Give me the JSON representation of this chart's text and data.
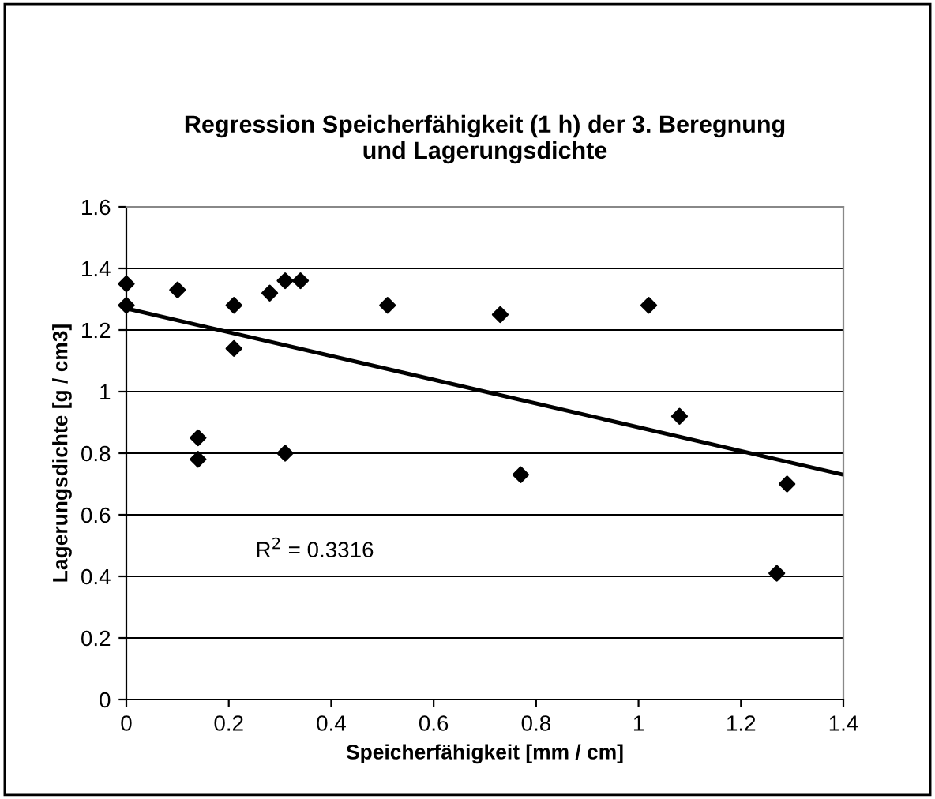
{
  "chart_data": {
    "type": "scatter",
    "title": "Regression Speicherfähigkeit (1 h) der 3. Beregnung\nund Lagerungsdichte",
    "xlabel": "Speicherfähigkeit [mm / cm]",
    "ylabel": "Lagerungsdichte [g / cm3]",
    "xlim": [
      0,
      1.4
    ],
    "xticks": [
      0,
      0.2,
      0.4,
      0.6,
      0.8,
      1,
      1.2,
      1.4
    ],
    "ylim": [
      0,
      1.6
    ],
    "yticks": [
      0,
      0.2,
      0.4,
      0.6,
      0.8,
      1,
      1.2,
      1.4,
      1.6
    ],
    "grid": "y",
    "legend": false,
    "series": [
      {
        "color": "#000000",
        "marker": "diamond",
        "x": [
          0,
          0,
          0.1,
          0.21,
          0.21,
          0.28,
          0.31,
          0.34,
          0.51,
          0.14,
          0.14,
          0.31,
          0.73,
          0.77,
          1.02,
          1.08,
          1.29,
          1.27
        ],
        "values": [
          1.35,
          1.28,
          1.33,
          1.28,
          1.14,
          1.32,
          1.36,
          1.36,
          1.28,
          0.85,
          0.78,
          0.8,
          1.25,
          0.73,
          1.28,
          0.92,
          0.7,
          0.41
        ]
      },
      {
        "type": "line",
        "color": "#000000",
        "marker": "none",
        "line_style": "solid",
        "x": [
          0,
          1.4
        ],
        "values": [
          1.27,
          0.73
        ]
      }
    ],
    "annotations": [
      "R$^{2}$ = 0.3316"
    ]
  }
}
